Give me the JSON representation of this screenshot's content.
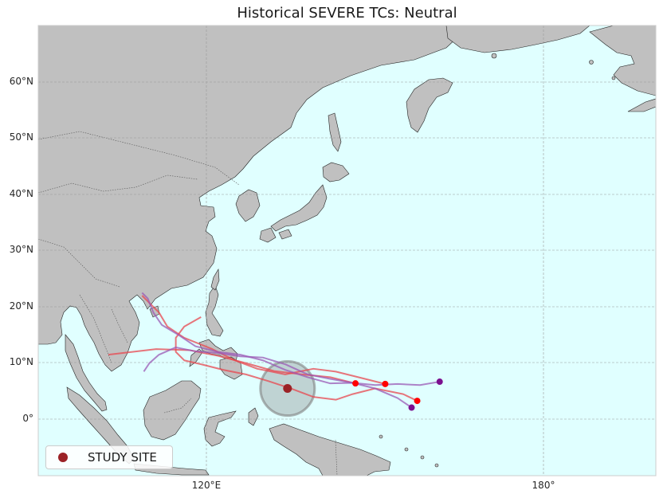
{
  "title": "Historical SEVERE TCs: Neutral",
  "lat_labels": [
    "60°N",
    "50°N",
    "40°N",
    "30°N",
    "20°N",
    "10°N",
    "0°"
  ],
  "lon_labels": [
    "120°E",
    "180°"
  ],
  "legend": {
    "label": "STUDY SITE",
    "marker_color": "#9b2226"
  },
  "colors": {
    "ocean": "#e0ffff",
    "land": "#c0c0c0",
    "track_red": "#e8474f",
    "track_purple": "#9b59b6",
    "genesis_red": "#ff0000",
    "genesis_purple": "#7b0f8f",
    "study_site": "#9b2226",
    "buffer": "#808080"
  },
  "map": {
    "lon_range": [
      90,
      200
    ],
    "lat_range": [
      -10,
      70
    ],
    "study_site": {
      "lon": 134.4,
      "lat": 5.5
    },
    "tracks": [
      {
        "color": "red",
        "points": [
          [
            146.5,
            6.4
          ],
          [
            142,
            7.5
          ],
          [
            137,
            8.0
          ],
          [
            132,
            8.6
          ],
          [
            127,
            10.0
          ],
          [
            122,
            11.3
          ],
          [
            117,
            12.3
          ],
          [
            111,
            12.5
          ],
          [
            102.5,
            11.5
          ]
        ]
      },
      {
        "color": "red",
        "points": [
          [
            151.8,
            6.3
          ],
          [
            147,
            7.5
          ],
          [
            143,
            8.5
          ],
          [
            139,
            9.0
          ],
          [
            134,
            8.0
          ],
          [
            129,
            9.0
          ],
          [
            125,
            10.5
          ],
          [
            121,
            12.5
          ],
          [
            116,
            14.5
          ],
          [
            113,
            16.5
          ],
          [
            111.5,
            19.0
          ],
          [
            108.5,
            22.0
          ]
        ]
      },
      {
        "color": "red",
        "points": [
          [
            157.5,
            3.3
          ],
          [
            155,
            4.5
          ],
          [
            150,
            5.5
          ],
          [
            146,
            4.5
          ],
          [
            143,
            3.5
          ],
          [
            139,
            4.0
          ],
          [
            135,
            5.5
          ],
          [
            131,
            6.8
          ],
          [
            127,
            8.0
          ],
          [
            123,
            8.8
          ],
          [
            119,
            9.8
          ],
          [
            116,
            10.5
          ],
          [
            114.5,
            12.0
          ],
          [
            114.5,
            14.5
          ],
          [
            116,
            16.5
          ],
          [
            119,
            18.2
          ]
        ]
      },
      {
        "color": "purple",
        "points": [
          [
            161.5,
            6.7
          ],
          [
            158,
            6.1
          ],
          [
            154,
            6.3
          ],
          [
            150,
            6.1
          ],
          [
            146,
            6.5
          ],
          [
            142,
            6.4
          ],
          [
            138,
            7.5
          ],
          [
            134,
            8.8
          ],
          [
            130,
            10.5
          ],
          [
            126,
            11.5
          ],
          [
            122,
            12.0
          ],
          [
            118,
            13.0
          ],
          [
            115,
            15.0
          ],
          [
            112,
            16.8
          ],
          [
            110.5,
            19.0
          ],
          [
            109.5,
            21.5
          ],
          [
            108.5,
            22.5
          ]
        ]
      },
      {
        "color": "purple",
        "points": [
          [
            156.5,
            2.1
          ],
          [
            154,
            3.8
          ],
          [
            150,
            5.5
          ],
          [
            146,
            6.5
          ],
          [
            142,
            7.2
          ],
          [
            138,
            8.0
          ],
          [
            134,
            9.8
          ],
          [
            130,
            11.0
          ],
          [
            126,
            11.2
          ],
          [
            122,
            11.8
          ],
          [
            118,
            12.1
          ],
          [
            114.5,
            12.8
          ],
          [
            111.5,
            11.5
          ],
          [
            109.8,
            10.0
          ],
          [
            108.8,
            8.5
          ]
        ]
      }
    ],
    "genesis_points": [
      {
        "lon": 146.5,
        "lat": 6.4,
        "color": "red"
      },
      {
        "lon": 151.8,
        "lat": 6.3,
        "color": "red"
      },
      {
        "lon": 157.5,
        "lat": 3.3,
        "color": "red"
      },
      {
        "lon": 161.5,
        "lat": 6.7,
        "color": "purple"
      },
      {
        "lon": 156.5,
        "lat": 2.1,
        "color": "purple"
      }
    ]
  }
}
